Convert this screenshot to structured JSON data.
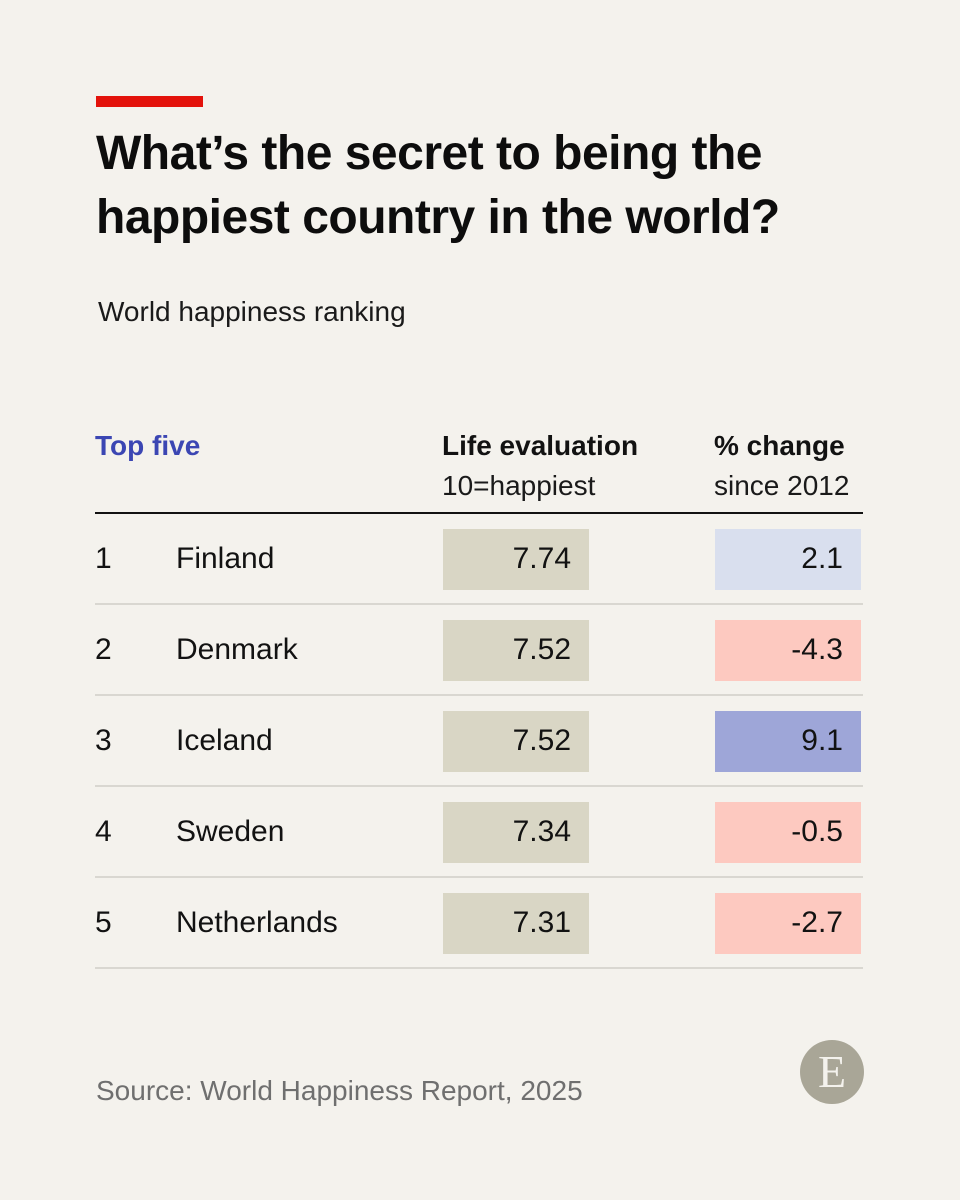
{
  "title": "What’s the secret to being the happiest country in the world?",
  "subtitle": "World happiness ranking",
  "source": "Source: World Happiness Report, 2025",
  "logo_letter": "E",
  "colors": {
    "accent": "#e3120b",
    "life_cell": "#d9d6c5",
    "change_small_positive": "#d9dfee",
    "change_large_positive": "#9ea6d8",
    "change_negative": "#fdc9c0",
    "header_highlight": "#3b46b3"
  },
  "chart_data": {
    "type": "table",
    "columns": {
      "group": "Top five",
      "life": "Life evaluation",
      "life_note": "10=happiest",
      "change": "% change",
      "change_note": "since 2012"
    },
    "rows": [
      {
        "rank": "1",
        "country": "Finland",
        "life": "7.74",
        "change": "2.1"
      },
      {
        "rank": "2",
        "country": "Denmark",
        "life": "7.52",
        "change": "-4.3"
      },
      {
        "rank": "3",
        "country": "Iceland",
        "life": "7.52",
        "change": "9.1"
      },
      {
        "rank": "4",
        "country": "Sweden",
        "life": "7.34",
        "change": "-0.5"
      },
      {
        "rank": "5",
        "country": "Netherlands",
        "life": "7.31",
        "change": "-2.7"
      }
    ]
  }
}
